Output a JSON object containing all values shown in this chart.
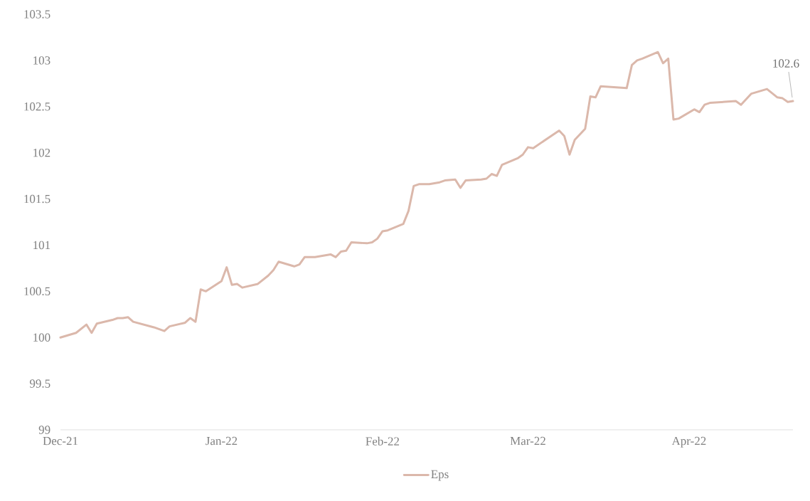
{
  "chart_data": {
    "type": "line",
    "x": [
      "2021-12-01",
      "2021-12-04",
      "2021-12-06",
      "2021-12-07",
      "2021-12-08",
      "2021-12-11",
      "2021-12-12",
      "2021-12-13",
      "2021-12-14",
      "2021-12-15",
      "2021-12-19",
      "2021-12-21",
      "2021-12-22",
      "2021-12-25",
      "2021-12-26",
      "2021-12-27",
      "2021-12-28",
      "2021-12-29",
      "2022-01-01",
      "2022-01-02",
      "2022-01-03",
      "2022-01-04",
      "2022-01-05",
      "2022-01-08",
      "2022-01-10",
      "2022-01-11",
      "2022-01-12",
      "2022-01-15",
      "2022-01-16",
      "2022-01-17",
      "2022-01-19",
      "2022-01-22",
      "2022-01-23",
      "2022-01-24",
      "2022-01-25",
      "2022-01-26",
      "2022-01-29",
      "2022-01-30",
      "2022-01-31",
      "2022-02-01",
      "2022-02-02",
      "2022-02-05",
      "2022-02-06",
      "2022-02-07",
      "2022-02-08",
      "2022-02-10",
      "2022-02-12",
      "2022-02-13",
      "2022-02-15",
      "2022-02-16",
      "2022-02-17",
      "2022-02-20",
      "2022-02-21",
      "2022-02-22",
      "2022-02-23",
      "2022-02-24",
      "2022-02-27",
      "2022-02-28",
      "2022-03-01",
      "2022-03-02",
      "2022-03-07",
      "2022-03-08",
      "2022-03-09",
      "2022-03-10",
      "2022-03-12",
      "2022-03-13",
      "2022-03-14",
      "2022-03-15",
      "2022-03-20",
      "2022-03-21",
      "2022-03-22",
      "2022-03-23",
      "2022-03-26",
      "2022-03-27",
      "2022-03-28",
      "2022-03-29",
      "2022-03-30",
      "2022-04-02",
      "2022-04-03",
      "2022-04-04",
      "2022-04-05",
      "2022-04-10",
      "2022-04-11",
      "2022-04-13",
      "2022-04-16",
      "2022-04-18",
      "2022-04-19",
      "2022-04-20",
      "2022-04-21"
    ],
    "series": [
      {
        "name": "Eps",
        "color": "#dbb8ab",
        "values": [
          100.0,
          100.05,
          100.14,
          100.05,
          100.15,
          100.19,
          100.21,
          100.21,
          100.22,
          100.17,
          100.11,
          100.07,
          100.12,
          100.16,
          100.21,
          100.17,
          100.52,
          100.5,
          100.61,
          100.76,
          100.57,
          100.58,
          100.54,
          100.58,
          100.67,
          100.73,
          100.82,
          100.77,
          100.79,
          100.87,
          100.87,
          100.9,
          100.87,
          100.93,
          100.94,
          101.03,
          101.02,
          101.03,
          101.07,
          101.15,
          101.16,
          101.23,
          101.37,
          101.64,
          101.66,
          101.66,
          101.68,
          101.7,
          101.71,
          101.62,
          101.7,
          101.71,
          101.72,
          101.77,
          101.75,
          101.87,
          101.94,
          101.98,
          102.06,
          102.05,
          102.24,
          102.18,
          101.98,
          102.14,
          102.26,
          102.61,
          102.6,
          102.72,
          102.7,
          102.95,
          103.0,
          103.02,
          103.09,
          102.97,
          103.02,
          102.36,
          102.37,
          102.47,
          102.44,
          102.52,
          102.54,
          102.56,
          102.52,
          102.64,
          102.69,
          102.6,
          102.59,
          102.55,
          102.56
        ]
      }
    ],
    "xlim": [
      "2021-12-01",
      "2022-04-21"
    ],
    "xticks": [
      {
        "value": "2021-12-01",
        "label": "Dec-21"
      },
      {
        "value": "2022-01-01",
        "label": "Jan-22"
      },
      {
        "value": "2022-02-01",
        "label": "Feb-22"
      },
      {
        "value": "2022-03-01",
        "label": "Mar-22"
      },
      {
        "value": "2022-04-01",
        "label": "Apr-22"
      }
    ],
    "ylim": [
      99,
      103.5
    ],
    "yticks": [
      99,
      99.5,
      100,
      100.5,
      101,
      101.5,
      102,
      102.5,
      103,
      103.5
    ],
    "annotations": [
      {
        "text": "102.6",
        "x": "2022-04-21",
        "y": 102.56
      }
    ],
    "legend": "bottom",
    "line_style": "solid"
  }
}
